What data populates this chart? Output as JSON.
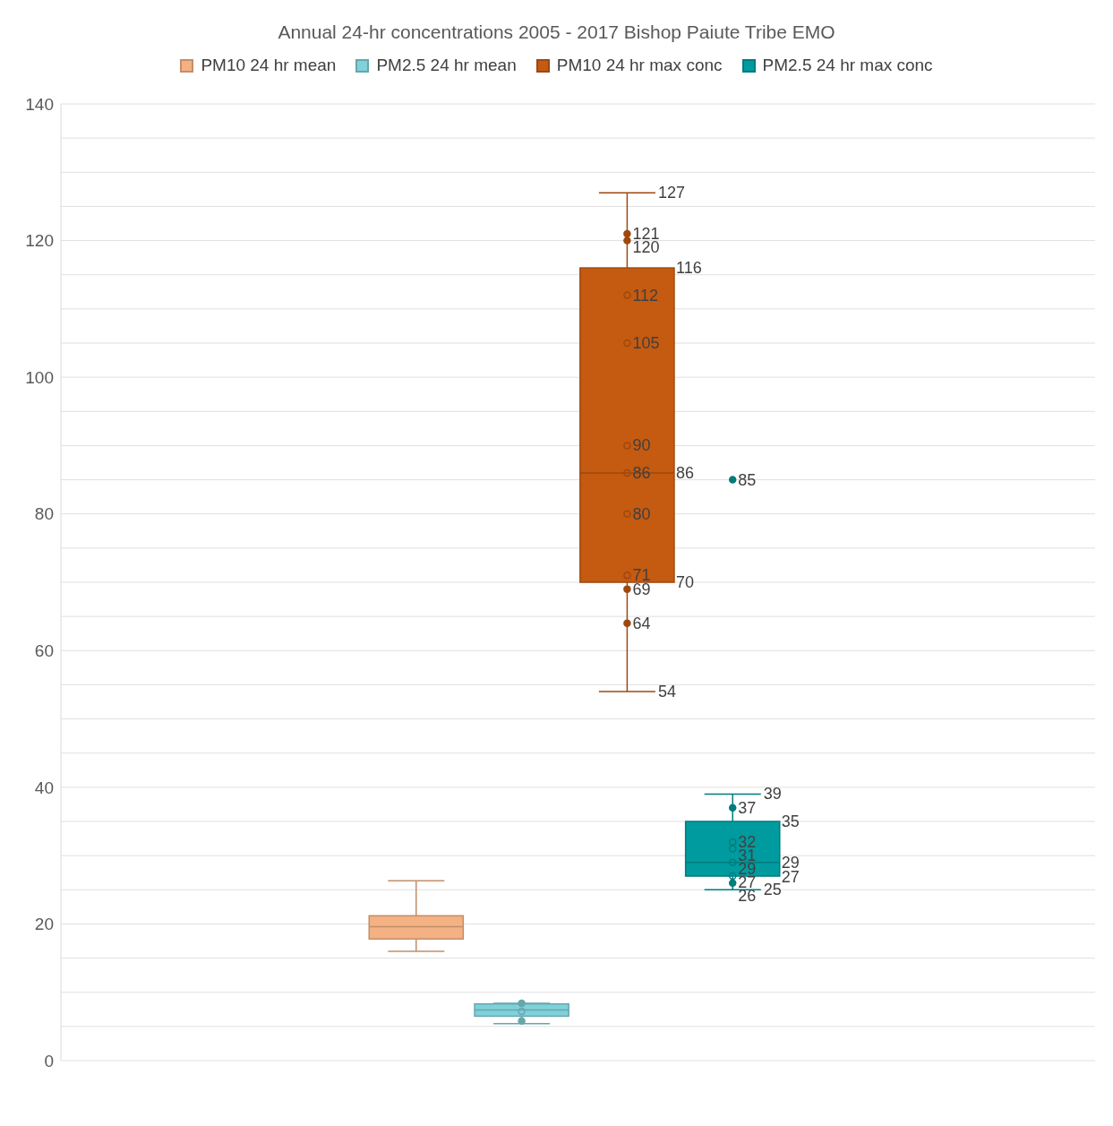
{
  "chart_data": {
    "type": "box",
    "title": "Annual 24-hr concentrations 2005 - 2017 Bishop Paiute Tribe EMO",
    "categories": [
      null
    ],
    "series": [
      {
        "name": "PM10 24 hr mean",
        "color": "#f4b183",
        "boxes": [
          {
            "low": 16,
            "q1": 17.8,
            "median": 19.6,
            "q3": 21.2,
            "high": 26.3
          }
        ]
      },
      {
        "name": "PM2.5 24 hr mean",
        "color": "#7fd1da",
        "boxes": [
          {
            "low": 5.4,
            "q1": 6.5,
            "median": 7.4,
            "q3": 8.3,
            "high": 8.4,
            "outliers": [
              8.4,
              7.2,
              5.8
            ]
          }
        ]
      },
      {
        "name": "PM10 24 hr max conc",
        "color": "#c55a11",
        "data_labels": true,
        "boxes": [
          {
            "low": 54,
            "q1": 70,
            "median": 86,
            "q3": 116,
            "high": 127,
            "outliers": [
              121,
              120,
              112,
              105,
              90,
              86,
              80,
              71,
              69,
              64
            ]
          }
        ]
      },
      {
        "name": "PM2.5 24 hr max conc",
        "color": "#009b9e",
        "data_labels": true,
        "boxes": [
          {
            "low": 25,
            "q1": 27,
            "median": 29,
            "q3": 35,
            "high": 39,
            "outliers": [
              85,
              37,
              32,
              31,
              29,
              27,
              26
            ]
          }
        ]
      }
    ],
    "ylim": [
      0,
      140
    ],
    "yticks": [
      0,
      {
        "value": 5,
        "label": null
      },
      {
        "value": 10,
        "label": null
      },
      {
        "value": 15,
        "label": null
      },
      20,
      {
        "value": 25,
        "label": null
      },
      {
        "value": 30,
        "label": null
      },
      {
        "value": 35,
        "label": null
      },
      40,
      {
        "value": 45,
        "label": null
      },
      {
        "value": 50,
        "label": null
      },
      {
        "value": 55,
        "label": null
      },
      60,
      {
        "value": 65,
        "label": null
      },
      {
        "value": 70,
        "label": null
      },
      {
        "value": 75,
        "label": null
      },
      80,
      {
        "value": 85,
        "label": null
      },
      {
        "value": 90,
        "label": null
      },
      {
        "value": 95,
        "label": null
      },
      100,
      {
        "value": 105,
        "label": null
      },
      {
        "value": 110,
        "label": null
      },
      {
        "value": 115,
        "label": null
      },
      120,
      {
        "value": 125,
        "label": null
      },
      {
        "value": 130,
        "label": null
      },
      {
        "value": 135,
        "label": null
      },
      140
    ],
    "grid": true,
    "legend": "top",
    "tick_labels": "y",
    "annotations": [
      "127",
      "54",
      "121",
      "120",
      "112",
      "105",
      "90",
      "86",
      "80",
      "71",
      "69",
      "64",
      "116",
      "86",
      "70",
      "39",
      "25",
      "85",
      "37",
      "32",
      "31",
      "29",
      "27",
      "26",
      "35",
      "29",
      "27"
    ]
  }
}
